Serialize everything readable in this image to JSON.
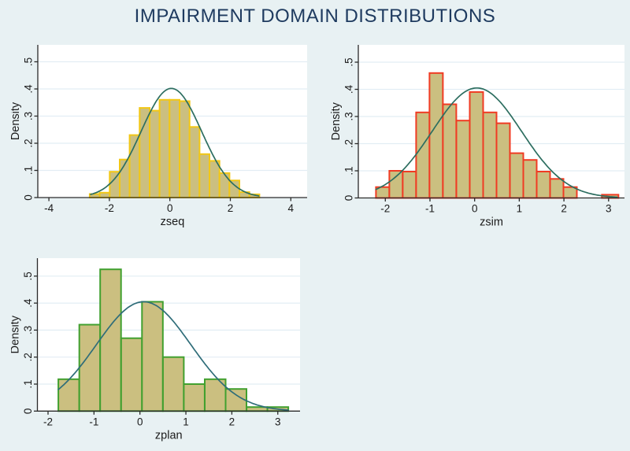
{
  "title": "IMPAIRMENT DOMAIN DISTRIBUTIONS",
  "colors": {
    "background": "#e8f1f3",
    "plot_bg": "#ffffff",
    "gridline": "#e2edf4",
    "axis": "#2a2a2a",
    "text": "#1a1a1a",
    "title": "#1e3a5f"
  },
  "chart_data": [
    {
      "id": "zseq",
      "type": "bar",
      "subtype": "histogram-with-normal-density",
      "xlabel": "zseq",
      "ylabel": "Density",
      "x_ticks": [
        "-4",
        "-2",
        "0",
        "2",
        "4"
      ],
      "x_tick_values": [
        -4,
        -2,
        0,
        2,
        4
      ],
      "y_ticks": [
        "0",
        ".1",
        ".2",
        ".3",
        ".4",
        ".5"
      ],
      "y_tick_values": [
        0,
        0.1,
        0.2,
        0.3,
        0.4,
        0.5
      ],
      "xlim": [
        -4.35,
        4.55
      ],
      "ylim": [
        0,
        0.56
      ],
      "grid": "horizontal",
      "bins": {
        "start": -2.65,
        "width": 0.33,
        "heights": [
          0.013,
          0.018,
          0.095,
          0.14,
          0.23,
          0.33,
          0.32,
          0.36,
          0.36,
          0.355,
          0.26,
          0.16,
          0.135,
          0.09,
          0.063,
          0.02,
          0.012
        ]
      },
      "extra_bars": [],
      "curve": {
        "kind": "normal-density",
        "mean": 0.05,
        "sd": 1.0,
        "peak": 0.402,
        "from": -2.62,
        "to": 2.96
      },
      "colors": {
        "bar_fill": "#cbbf80",
        "bar_edge": "#f2c716",
        "curve": "#2d6e60"
      }
    },
    {
      "id": "zsim",
      "type": "bar",
      "subtype": "histogram-with-normal-density",
      "xlabel": "zsim",
      "ylabel": "Density",
      "x_ticks": [
        "-2",
        "-1",
        "0",
        "1",
        "2",
        "3"
      ],
      "x_tick_values": [
        -2,
        -1,
        0,
        1,
        2,
        3
      ],
      "y_ticks": [
        "0",
        ".1",
        ".2",
        ".3",
        ".4",
        ".5"
      ],
      "y_tick_values": [
        0,
        0.1,
        0.2,
        0.3,
        0.4,
        0.5
      ],
      "xlim": [
        -2.6,
        3.4
      ],
      "ylim": [
        0,
        0.56
      ],
      "grid": "horizontal",
      "bins": {
        "start": -2.21,
        "width": 0.3,
        "heights": [
          0.04,
          0.1,
          0.097,
          0.315,
          0.46,
          0.345,
          0.285,
          0.39,
          0.315,
          0.275,
          0.165,
          0.14,
          0.097,
          0.07,
          0.04
        ]
      },
      "extra_bars": [
        {
          "x": 2.85,
          "w": 0.37,
          "h": 0.012
        }
      ],
      "curve": {
        "kind": "normal-density",
        "mean": 0.05,
        "sd": 1.0,
        "peak": 0.405,
        "from": -2.21,
        "to": 3.22
      },
      "colors": {
        "bar_fill": "#cbbf80",
        "bar_edge": "#f03b23",
        "curve": "#2d6e60"
      }
    },
    {
      "id": "zplan",
      "type": "bar",
      "subtype": "histogram-with-normal-density",
      "xlabel": "zplan",
      "ylabel": "Density",
      "x_ticks": [
        "-2",
        "-1",
        "0",
        "1",
        "2",
        "3"
      ],
      "x_tick_values": [
        -2,
        -1,
        0,
        1,
        2,
        3
      ],
      "y_ticks": [
        "0",
        ".1",
        ".2",
        ".3",
        ".4",
        ".5"
      ],
      "y_tick_values": [
        0,
        0.1,
        0.2,
        0.3,
        0.4,
        0.5
      ],
      "xlim": [
        -2.25,
        3.5
      ],
      "ylim": [
        0,
        0.57
      ],
      "grid": "horizontal",
      "bins": {
        "start": -1.775,
        "width": 0.455,
        "heights": [
          0.118,
          0.32,
          0.525,
          0.27,
          0.405,
          0.2,
          0.1,
          0.118,
          0.082,
          0.015,
          0.015
        ]
      },
      "extra_bars": [],
      "curve": {
        "kind": "normal-density",
        "mean": 0.08,
        "sd": 1.03,
        "peak": 0.405,
        "from": -1.775,
        "to": 3.23
      },
      "colors": {
        "bar_fill": "#cbbf80",
        "bar_edge": "#41a02f",
        "curve": "#2f6d79"
      }
    }
  ]
}
